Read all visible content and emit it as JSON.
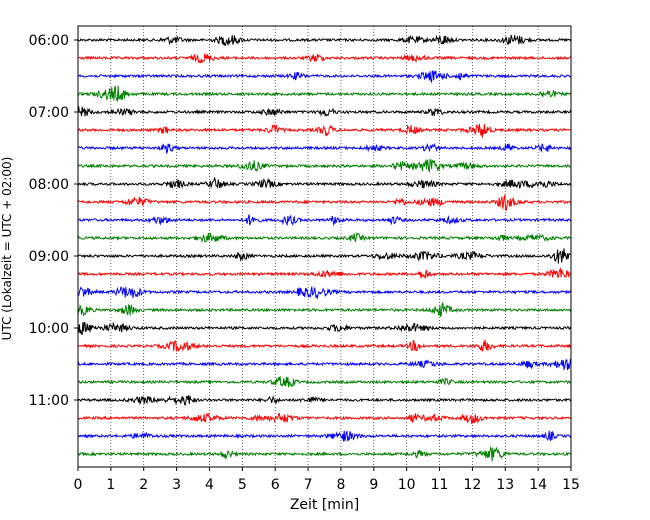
{
  "chart_data": {
    "type": "line",
    "title": "",
    "xlabel": "Zeit  [min]",
    "ylabel": "UTC (Lokalzeit = UTC + 02:00)",
    "xlim": [
      0,
      15
    ],
    "x_ticks": [
      "0",
      "1",
      "2",
      "3",
      "4",
      "5",
      "6",
      "7",
      "8",
      "9",
      "10",
      "11",
      "12",
      "13",
      "14",
      "15"
    ],
    "y_ticks": [
      "06:00",
      "07:00",
      "08:00",
      "09:00",
      "10:00",
      "11:00"
    ],
    "grid": "vertical dotted",
    "legend": "none",
    "series": [
      {
        "start": "06:00",
        "color": "#000000"
      },
      {
        "start": "06:15",
        "color": "#ff0000"
      },
      {
        "start": "06:30",
        "color": "#0000ff"
      },
      {
        "start": "06:45",
        "color": "#008000"
      },
      {
        "start": "07:00",
        "color": "#000000"
      },
      {
        "start": "07:15",
        "color": "#ff0000"
      },
      {
        "start": "07:30",
        "color": "#0000ff"
      },
      {
        "start": "07:45",
        "color": "#008000"
      },
      {
        "start": "08:00",
        "color": "#000000"
      },
      {
        "start": "08:15",
        "color": "#ff0000"
      },
      {
        "start": "08:30",
        "color": "#0000ff"
      },
      {
        "start": "08:45",
        "color": "#008000"
      },
      {
        "start": "09:00",
        "color": "#000000"
      },
      {
        "start": "09:15",
        "color": "#ff0000"
      },
      {
        "start": "09:30",
        "color": "#0000ff"
      },
      {
        "start": "09:45",
        "color": "#008000"
      },
      {
        "start": "10:00",
        "color": "#000000"
      },
      {
        "start": "10:15",
        "color": "#ff0000"
      },
      {
        "start": "10:30",
        "color": "#0000ff"
      },
      {
        "start": "10:45",
        "color": "#008000"
      },
      {
        "start": "11:00",
        "color": "#000000"
      },
      {
        "start": "11:15",
        "color": "#ff0000"
      },
      {
        "start": "11:30",
        "color": "#0000ff"
      },
      {
        "start": "11:45",
        "color": "#008000"
      }
    ]
  }
}
